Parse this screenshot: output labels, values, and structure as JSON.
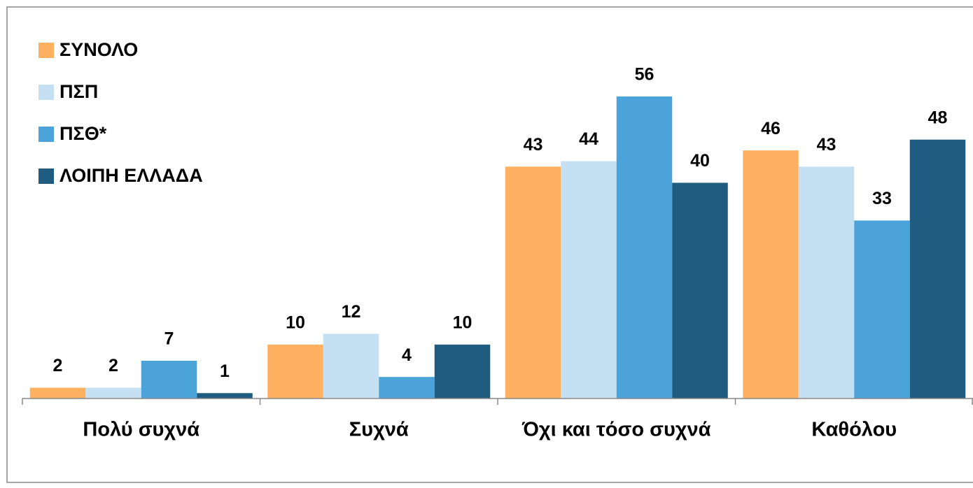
{
  "chart_data": {
    "type": "bar",
    "categories": [
      "Πολύ συχνά",
      "Συχνά",
      "Όχι και τόσο συχνά",
      "Καθόλου"
    ],
    "series": [
      {
        "name": "ΣΥΝΟΛΟ",
        "color": "#fdb160",
        "values": [
          2,
          10,
          43,
          46
        ]
      },
      {
        "name": "ΠΣΠ",
        "color": "#c5e0f2",
        "values": [
          2,
          12,
          44,
          43
        ]
      },
      {
        "name": "ΠΣΘ*",
        "color": "#4ba3d9",
        "values": [
          7,
          4,
          56,
          33
        ]
      },
      {
        "name": "ΛΟΙΠΗ ΕΛΛΑΔΑ",
        "color": "#1f5c80",
        "values": [
          1,
          10,
          40,
          48
        ]
      }
    ],
    "legend": "upper left"
  }
}
